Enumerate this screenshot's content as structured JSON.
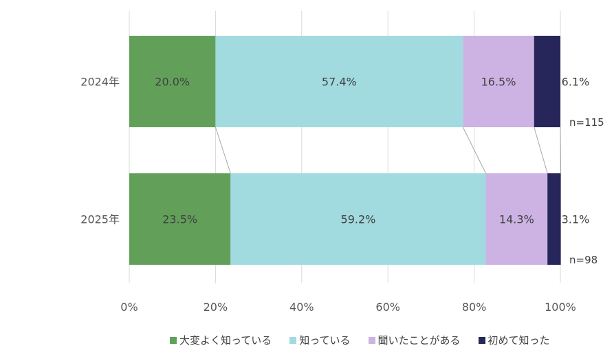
{
  "chart_data": {
    "type": "bar",
    "orientation": "horizontal",
    "stacked": "100%",
    "categories": [
      "2024年",
      "2025年"
    ],
    "series": [
      {
        "name": "大変よく知っている",
        "color": "#62a05a",
        "values": [
          20.0,
          23.5
        ],
        "labels": [
          "20.0%",
          "23.5%"
        ]
      },
      {
        "name": "知っている",
        "color": "#a1dbe0",
        "values": [
          57.4,
          59.2
        ],
        "labels": [
          "57.4%",
          "59.2%"
        ]
      },
      {
        "name": "聞いたことがある",
        "color": "#ccb3e3",
        "values": [
          16.5,
          14.3
        ],
        "labels": [
          "16.5%",
          "14.3%"
        ]
      },
      {
        "name": "初めて知った",
        "color": "#26265a",
        "values": [
          6.1,
          3.1
        ],
        "labels": [
          "6.1%",
          "3.1%"
        ]
      }
    ],
    "sample_sizes": [
      "n=115",
      "n=98"
    ],
    "xlim": [
      0,
      100
    ],
    "x_ticks": [
      "0%",
      "20%",
      "40%",
      "60%",
      "80%",
      "100%"
    ],
    "grid": true,
    "series_lines": true,
    "legend_position": "bottom"
  }
}
